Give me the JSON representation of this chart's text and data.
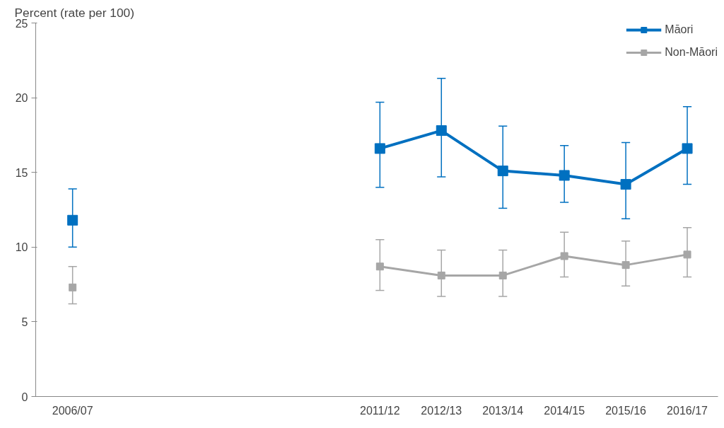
{
  "chart_data": {
    "type": "line",
    "ylabel": "Percent (rate per 100)",
    "categories": [
      "2006/07",
      null,
      null,
      null,
      null,
      "2011/12",
      "2012/13",
      "2013/14",
      "2014/15",
      "2015/16",
      "2016/17"
    ],
    "series": [
      {
        "name": "Māori",
        "color": "#0070c0",
        "values": [
          11.8,
          null,
          null,
          null,
          null,
          16.6,
          17.8,
          15.1,
          14.8,
          14.2,
          16.6
        ],
        "errors": [
          [
            10.0,
            13.9
          ],
          null,
          null,
          null,
          null,
          [
            14.0,
            19.7
          ],
          [
            14.7,
            21.3
          ],
          [
            12.6,
            18.1
          ],
          [
            13.0,
            16.8
          ],
          [
            11.9,
            17.0
          ],
          [
            14.2,
            19.4
          ]
        ]
      },
      {
        "name": "Non-Māori",
        "color": "#a6a6a6",
        "values": [
          7.3,
          null,
          null,
          null,
          null,
          8.7,
          8.1,
          8.1,
          9.4,
          8.8,
          9.5
        ],
        "errors": [
          [
            6.2,
            8.7
          ],
          null,
          null,
          null,
          null,
          [
            7.1,
            10.5
          ],
          [
            6.7,
            9.8
          ],
          [
            6.7,
            9.8
          ],
          [
            8.0,
            11.0
          ],
          [
            7.4,
            10.4
          ],
          [
            8.0,
            11.3
          ]
        ]
      }
    ],
    "ylim": [
      0,
      25
    ],
    "yticks": [
      0,
      5,
      10,
      15,
      20,
      25
    ],
    "grid": false,
    "legend": "top right",
    "marker": "square",
    "line_style": "solid"
  }
}
